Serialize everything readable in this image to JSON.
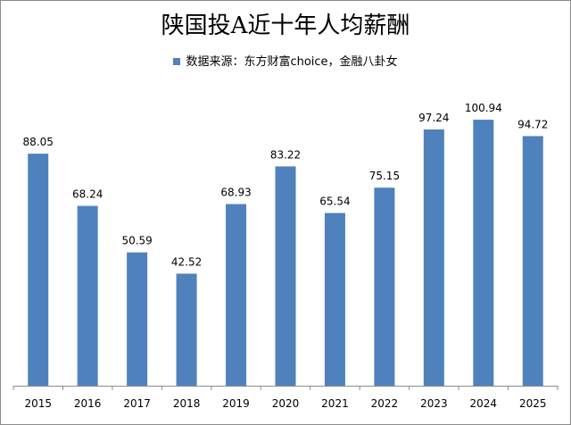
{
  "chart_data": {
    "type": "bar",
    "title": "陕国投A近十年人均薪酬",
    "legend": {
      "position": "top",
      "entries": [
        "数据来源：东方财富choice，金融八卦女"
      ]
    },
    "categories": [
      "2015",
      "2016",
      "2017",
      "2018",
      "2019",
      "2020",
      "2021",
      "2022",
      "2023",
      "2024",
      "2025"
    ],
    "series": [
      {
        "name": "数据来源：东方财富choice，金融八卦女",
        "values": [
          88.05,
          68.24,
          50.59,
          42.52,
          68.93,
          83.22,
          65.54,
          75.15,
          97.24,
          100.94,
          94.72
        ],
        "data_labels": [
          "88.05",
          "68.24",
          "50.59",
          "42.52",
          "68.93",
          "83.22",
          "65.54",
          "75.15",
          "97.24",
          "100.94",
          "94.72"
        ]
      }
    ],
    "ylim": [
      0,
      103
    ],
    "grid": false,
    "colors": {
      "bar": "#4f81bd",
      "axis": "#8c8c8c"
    }
  }
}
